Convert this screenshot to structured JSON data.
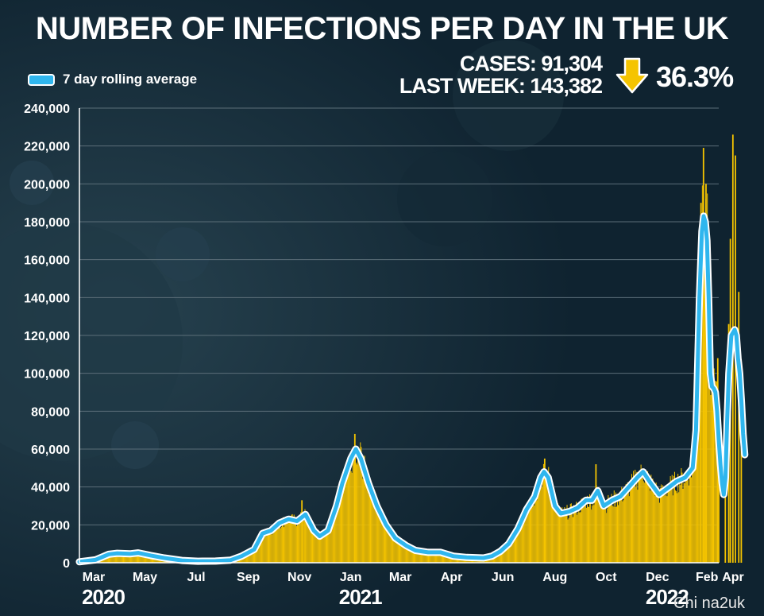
{
  "title": "NUMBER OF INFECTIONS PER DAY IN THE UK",
  "legend": {
    "label": "7 day rolling average"
  },
  "stats": {
    "cases": "CASES: 91,304",
    "last_week": "LAST WEEK: 143,382",
    "change": "36.3%",
    "change_direction": "down",
    "arrow_color": "#f5c400"
  },
  "watermark": "Chi na2uk",
  "colors": {
    "background": "#0f2330",
    "bars": "#f5c400",
    "line": "#2fb6ee",
    "line_outline": "#ffffff",
    "grid": "#5b6e78",
    "text": "#ffffff"
  },
  "chart_data": {
    "type": "bar",
    "title": "NUMBER OF INFECTIONS PER DAY IN THE UK",
    "xlabel": "",
    "ylabel": "",
    "ylim": [
      0,
      240000
    ],
    "yticks": [
      0,
      20000,
      40000,
      60000,
      80000,
      100000,
      120000,
      140000,
      160000,
      180000,
      200000,
      220000,
      240000
    ],
    "ytick_labels": [
      "0",
      "20,000",
      "40,000",
      "60,000",
      "80,000",
      "100,000",
      "120,000",
      "140,000",
      "160,000",
      "180,000",
      "200,000",
      "220,000",
      "240,000"
    ],
    "xlim": [
      "2020-03-01",
      "2022-04-01"
    ],
    "xticks": [
      {
        "date": "2020-03-01",
        "label": "Mar"
      },
      {
        "date": "2020-05-01",
        "label": "May"
      },
      {
        "date": "2020-07-01",
        "label": "Jul"
      },
      {
        "date": "2020-09-01",
        "label": "Sep"
      },
      {
        "date": "2020-11-01",
        "label": "Nov"
      },
      {
        "date": "2021-01-01",
        "label": "Jan"
      },
      {
        "date": "2021-03-01",
        "label": "Mar"
      },
      {
        "date": "2021-05-01",
        "label": "Apr"
      },
      {
        "date": "2021-07-01",
        "label": "Jun"
      },
      {
        "date": "2021-09-01",
        "label": "Aug"
      },
      {
        "date": "2021-11-01",
        "label": "Oct"
      },
      {
        "date": "2022-01-01",
        "label": "Dec"
      },
      {
        "date": "2022-03-01",
        "label": "Feb"
      },
      {
        "date": "2022-04-01",
        "label": "Apr"
      }
    ],
    "year_labels": [
      {
        "date": "2020-03-01",
        "label": "2020"
      },
      {
        "date": "2021-01-01",
        "label": "2021"
      },
      {
        "date": "2022-01-01",
        "label": "2022"
      }
    ],
    "grid": true,
    "legend_position": "top-left",
    "series": [
      {
        "name": "7 day rolling average",
        "type": "line",
        "points": [
          [
            "2020-03-01",
            500
          ],
          [
            "2020-03-20",
            1500
          ],
          [
            "2020-04-05",
            4500
          ],
          [
            "2020-04-15",
            5000
          ],
          [
            "2020-04-30",
            4700
          ],
          [
            "2020-05-10",
            5200
          ],
          [
            "2020-05-25",
            3800
          ],
          [
            "2020-06-10",
            2500
          ],
          [
            "2020-07-01",
            1200
          ],
          [
            "2020-07-20",
            800
          ],
          [
            "2020-08-10",
            900
          ],
          [
            "2020-08-28",
            1400
          ],
          [
            "2020-09-10",
            3500
          ],
          [
            "2020-09-25",
            7000
          ],
          [
            "2020-10-05",
            15500
          ],
          [
            "2020-10-15",
            17000
          ],
          [
            "2020-10-25",
            21000
          ],
          [
            "2020-11-05",
            23000
          ],
          [
            "2020-11-15",
            22000
          ],
          [
            "2020-11-25",
            25500
          ],
          [
            "2020-12-05",
            17000
          ],
          [
            "2020-12-12",
            14000
          ],
          [
            "2020-12-22",
            17000
          ],
          [
            "2021-01-01",
            30000
          ],
          [
            "2021-01-08",
            42000
          ],
          [
            "2021-01-18",
            55000
          ],
          [
            "2021-01-24",
            60000
          ],
          [
            "2021-01-30",
            55000
          ],
          [
            "2021-02-08",
            42000
          ],
          [
            "2021-02-18",
            30000
          ],
          [
            "2021-03-01",
            20000
          ],
          [
            "2021-03-12",
            13000
          ],
          [
            "2021-03-25",
            9000
          ],
          [
            "2021-04-05",
            6500
          ],
          [
            "2021-04-20",
            5500
          ],
          [
            "2021-05-05",
            5500
          ],
          [
            "2021-05-20",
            3500
          ],
          [
            "2021-06-05",
            2800
          ],
          [
            "2021-06-25",
            2500
          ],
          [
            "2021-07-05",
            3500
          ],
          [
            "2021-07-15",
            6000
          ],
          [
            "2021-07-25",
            10000
          ],
          [
            "2021-08-05",
            18000
          ],
          [
            "2021-08-15",
            28000
          ],
          [
            "2021-08-25",
            35000
          ],
          [
            "2021-09-01",
            45000
          ],
          [
            "2021-09-05",
            48000
          ],
          [
            "2021-09-10",
            45000
          ],
          [
            "2021-09-18",
            30000
          ],
          [
            "2021-09-25",
            26000
          ],
          [
            "2021-10-05",
            27000
          ],
          [
            "2021-10-15",
            29000
          ],
          [
            "2021-10-25",
            33000
          ],
          [
            "2021-11-01",
            33000
          ],
          [
            "2021-11-08",
            38000
          ],
          [
            "2021-11-15",
            30000
          ],
          [
            "2021-11-25",
            33000
          ],
          [
            "2021-12-05",
            35000
          ],
          [
            "2021-12-15",
            40000
          ],
          [
            "2021-12-25",
            45000
          ],
          [
            "2022-01-01",
            48000
          ],
          [
            "2022-01-10",
            42000
          ],
          [
            "2022-01-20",
            36000
          ],
          [
            "2022-02-01",
            40000
          ],
          [
            "2022-02-10",
            43000
          ],
          [
            "2022-02-20",
            45000
          ],
          [
            "2022-03-01",
            50000
          ],
          [
            "2022-03-05",
            70000
          ],
          [
            "2022-03-09",
            140000
          ],
          [
            "2022-03-12",
            175000
          ],
          [
            "2022-03-14",
            183000
          ],
          [
            "2022-03-16",
            180000
          ],
          [
            "2022-03-18",
            170000
          ],
          [
            "2022-03-20",
            140000
          ],
          [
            "2022-03-22",
            100000
          ],
          [
            "2022-03-24",
            93000
          ],
          [
            "2022-03-26",
            92000
          ],
          [
            "2022-03-28",
            90000
          ],
          [
            "2022-03-30",
            80000
          ],
          [
            "2022-04-01",
            65000
          ],
          [
            "2022-04-03",
            52000
          ],
          [
            "2022-04-05",
            42000
          ],
          [
            "2022-04-07",
            36000
          ],
          [
            "2022-04-09",
            45000
          ],
          [
            "2022-04-11",
            75000
          ],
          [
            "2022-04-13",
            100000
          ],
          [
            "2022-04-16",
            120000
          ],
          [
            "2022-04-20",
            123000
          ],
          [
            "2022-04-22",
            120000
          ],
          [
            "2022-04-24",
            108000
          ],
          [
            "2022-04-26",
            100000
          ],
          [
            "2022-04-28",
            85000
          ],
          [
            "2022-04-30",
            68000
          ],
          [
            "2022-05-02",
            57000
          ]
        ]
      },
      {
        "name": "Daily cases",
        "type": "bar",
        "note_spikes": [
          [
            "2020-11-20",
            33000
          ],
          [
            "2021-01-22",
            68000
          ],
          [
            "2021-09-05",
            55000
          ],
          [
            "2021-11-05",
            52000
          ],
          [
            "2022-03-10",
            190000
          ],
          [
            "2022-03-13",
            219000
          ],
          [
            "2022-03-16",
            200000
          ],
          [
            "2022-03-25",
            98000
          ],
          [
            "2022-03-30",
            108000
          ],
          [
            "2022-04-08",
            82000
          ],
          [
            "2022-04-12",
            126000
          ],
          [
            "2022-04-14",
            171000
          ],
          [
            "2022-04-17",
            226000
          ],
          [
            "2022-04-20",
            215000
          ],
          [
            "2022-04-24",
            143000
          ],
          [
            "2022-04-27",
            91000
          ]
        ]
      }
    ]
  }
}
